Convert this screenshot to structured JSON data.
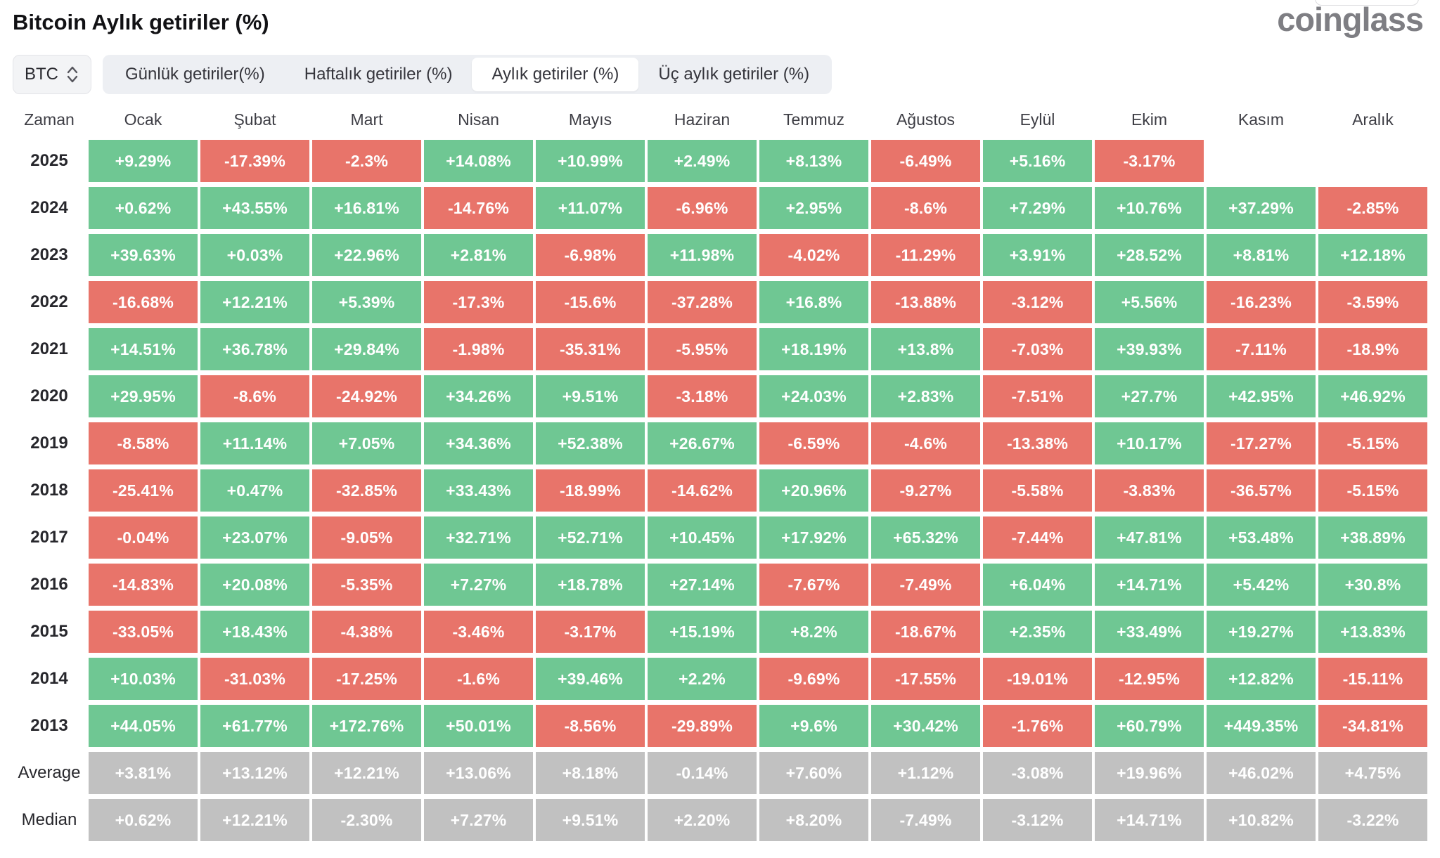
{
  "page": {
    "title": "Bitcoin Aylık getiriler (%)",
    "brand": "coinglass"
  },
  "controls": {
    "coin_selector": {
      "value": "BTC"
    },
    "tabs": [
      {
        "label": "Günlük getiriler(%)",
        "active": false
      },
      {
        "label": "Haftalık getiriler (%)",
        "active": false
      },
      {
        "label": "Aylık getiriler (%)",
        "active": true
      },
      {
        "label": "Üç aylık getiriler (%)",
        "active": false
      }
    ]
  },
  "colors": {
    "positive": "#6fc793",
    "negative": "#e8746a",
    "neutral": "#c1c1c1",
    "tab_group_bg": "#edeff3",
    "active_tab_bg": "#ffffff"
  },
  "chart_data": {
    "type": "heatmap",
    "title": "Bitcoin Aylık getiriler (%)",
    "row_header": "Zaman",
    "columns": [
      "Ocak",
      "Şubat",
      "Mart",
      "Nisan",
      "Mayıs",
      "Haziran",
      "Temmuz",
      "Ağustos",
      "Eylül",
      "Ekim",
      "Kasım",
      "Aralık"
    ],
    "rows": [
      {
        "label": "2025",
        "kind": "year",
        "values": [
          "+9.29%",
          "-17.39%",
          "-2.3%",
          "+14.08%",
          "+10.99%",
          "+2.49%",
          "+8.13%",
          "-6.49%",
          "+5.16%",
          "-3.17%",
          "",
          ""
        ]
      },
      {
        "label": "2024",
        "kind": "year",
        "values": [
          "+0.62%",
          "+43.55%",
          "+16.81%",
          "-14.76%",
          "+11.07%",
          "-6.96%",
          "+2.95%",
          "-8.6%",
          "+7.29%",
          "+10.76%",
          "+37.29%",
          "-2.85%"
        ]
      },
      {
        "label": "2023",
        "kind": "year",
        "values": [
          "+39.63%",
          "+0.03%",
          "+22.96%",
          "+2.81%",
          "-6.98%",
          "+11.98%",
          "-4.02%",
          "-11.29%",
          "+3.91%",
          "+28.52%",
          "+8.81%",
          "+12.18%"
        ]
      },
      {
        "label": "2022",
        "kind": "year",
        "values": [
          "-16.68%",
          "+12.21%",
          "+5.39%",
          "-17.3%",
          "-15.6%",
          "-37.28%",
          "+16.8%",
          "-13.88%",
          "-3.12%",
          "+5.56%",
          "-16.23%",
          "-3.59%"
        ]
      },
      {
        "label": "2021",
        "kind": "year",
        "values": [
          "+14.51%",
          "+36.78%",
          "+29.84%",
          "-1.98%",
          "-35.31%",
          "-5.95%",
          "+18.19%",
          "+13.8%",
          "-7.03%",
          "+39.93%",
          "-7.11%",
          "-18.9%"
        ]
      },
      {
        "label": "2020",
        "kind": "year",
        "values": [
          "+29.95%",
          "-8.6%",
          "-24.92%",
          "+34.26%",
          "+9.51%",
          "-3.18%",
          "+24.03%",
          "+2.83%",
          "-7.51%",
          "+27.7%",
          "+42.95%",
          "+46.92%"
        ]
      },
      {
        "label": "2019",
        "kind": "year",
        "values": [
          "-8.58%",
          "+11.14%",
          "+7.05%",
          "+34.36%",
          "+52.38%",
          "+26.67%",
          "-6.59%",
          "-4.6%",
          "-13.38%",
          "+10.17%",
          "-17.27%",
          "-5.15%"
        ]
      },
      {
        "label": "2018",
        "kind": "year",
        "values": [
          "-25.41%",
          "+0.47%",
          "-32.85%",
          "+33.43%",
          "-18.99%",
          "-14.62%",
          "+20.96%",
          "-9.27%",
          "-5.58%",
          "-3.83%",
          "-36.57%",
          "-5.15%"
        ]
      },
      {
        "label": "2017",
        "kind": "year",
        "values": [
          "-0.04%",
          "+23.07%",
          "-9.05%",
          "+32.71%",
          "+52.71%",
          "+10.45%",
          "+17.92%",
          "+65.32%",
          "-7.44%",
          "+47.81%",
          "+53.48%",
          "+38.89%"
        ]
      },
      {
        "label": "2016",
        "kind": "year",
        "values": [
          "-14.83%",
          "+20.08%",
          "-5.35%",
          "+7.27%",
          "+18.78%",
          "+27.14%",
          "-7.67%",
          "-7.49%",
          "+6.04%",
          "+14.71%",
          "+5.42%",
          "+30.8%"
        ]
      },
      {
        "label": "2015",
        "kind": "year",
        "values": [
          "-33.05%",
          "+18.43%",
          "-4.38%",
          "-3.46%",
          "-3.17%",
          "+15.19%",
          "+8.2%",
          "-18.67%",
          "+2.35%",
          "+33.49%",
          "+19.27%",
          "+13.83%"
        ]
      },
      {
        "label": "2014",
        "kind": "year",
        "values": [
          "+10.03%",
          "-31.03%",
          "-17.25%",
          "-1.6%",
          "+39.46%",
          "+2.2%",
          "-9.69%",
          "-17.55%",
          "-19.01%",
          "-12.95%",
          "+12.82%",
          "-15.11%"
        ]
      },
      {
        "label": "2013",
        "kind": "year",
        "values": [
          "+44.05%",
          "+61.77%",
          "+172.76%",
          "+50.01%",
          "-8.56%",
          "-29.89%",
          "+9.6%",
          "+30.42%",
          "-1.76%",
          "+60.79%",
          "+449.35%",
          "-34.81%"
        ]
      },
      {
        "label": "Average",
        "kind": "stat",
        "values": [
          "+3.81%",
          "+13.12%",
          "+12.21%",
          "+13.06%",
          "+8.18%",
          "-0.14%",
          "+7.60%",
          "+1.12%",
          "-3.08%",
          "+19.96%",
          "+46.02%",
          "+4.75%"
        ]
      },
      {
        "label": "Median",
        "kind": "stat",
        "values": [
          "+0.62%",
          "+12.21%",
          "-2.30%",
          "+7.27%",
          "+9.51%",
          "+2.20%",
          "+8.20%",
          "-7.49%",
          "-3.12%",
          "+14.71%",
          "+10.82%",
          "-3.22%"
        ]
      }
    ]
  }
}
